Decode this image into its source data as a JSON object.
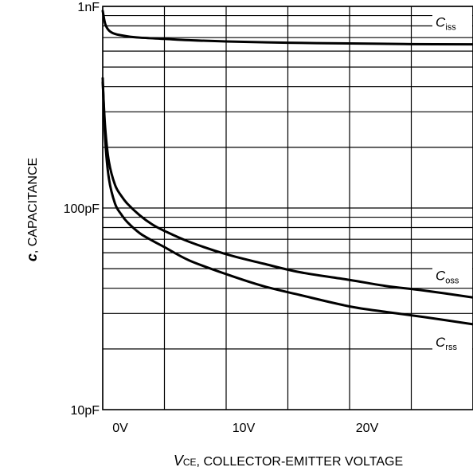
{
  "chart_data": {
    "type": "line",
    "xlabel": {
      "symbol": "V",
      "subscript": "CE",
      "text": ", COLLECTOR-EMITTER VOLTAGE"
    },
    "ylabel": {
      "symbol": "c",
      "text": ", CAPACITANCE"
    },
    "x_scale": "linear",
    "y_scale": "log",
    "xlim": [
      0,
      30
    ],
    "ylim": [
      10,
      1000
    ],
    "grid": true,
    "x_ticks": [
      {
        "value": 0,
        "label": "0V"
      },
      {
        "value": 10,
        "label": "10V"
      },
      {
        "value": 20,
        "label": "20V"
      }
    ],
    "x_gridlines": [
      0,
      5,
      10,
      15,
      20,
      25,
      30
    ],
    "y_ticks": [
      {
        "value": 10,
        "label": "10pF"
      },
      {
        "value": 100,
        "label": "100pF"
      },
      {
        "value": 1000,
        "label": "1nF"
      }
    ],
    "y_gridlines": [
      20,
      30,
      40,
      50,
      60,
      70,
      80,
      90,
      100,
      200,
      300,
      400,
      500,
      600,
      700,
      800,
      900,
      1000
    ],
    "series": [
      {
        "name": "C",
        "subscript": "iss",
        "x": [
          0,
          0.2,
          0.5,
          1,
          2,
          3,
          5,
          7,
          10,
          15,
          20,
          25,
          30
        ],
        "y": [
          950,
          820,
          760,
          730,
          710,
          700,
          690,
          680,
          670,
          660,
          655,
          650,
          648
        ]
      },
      {
        "name": "C",
        "subscript": "oss",
        "x": [
          0,
          0.2,
          0.5,
          1,
          1.5,
          2,
          3,
          4,
          5,
          7,
          10,
          13,
          16,
          20,
          23,
          26,
          30
        ],
        "y": [
          420,
          250,
          170,
          130,
          115,
          105,
          92,
          83,
          77,
          68,
          59,
          53,
          48,
          44,
          41,
          39,
          36
        ]
      },
      {
        "name": "C",
        "subscript": "rss",
        "x": [
          0,
          0.2,
          0.5,
          1,
          1.5,
          2,
          3,
          4,
          5,
          7,
          10,
          13,
          16,
          20,
          23,
          26,
          30
        ],
        "y": [
          440,
          220,
          140,
          105,
          93,
          85,
          75,
          69,
          64,
          55,
          47,
          41,
          37,
          32.5,
          30.5,
          28.8,
          26.5
        ]
      }
    ]
  }
}
